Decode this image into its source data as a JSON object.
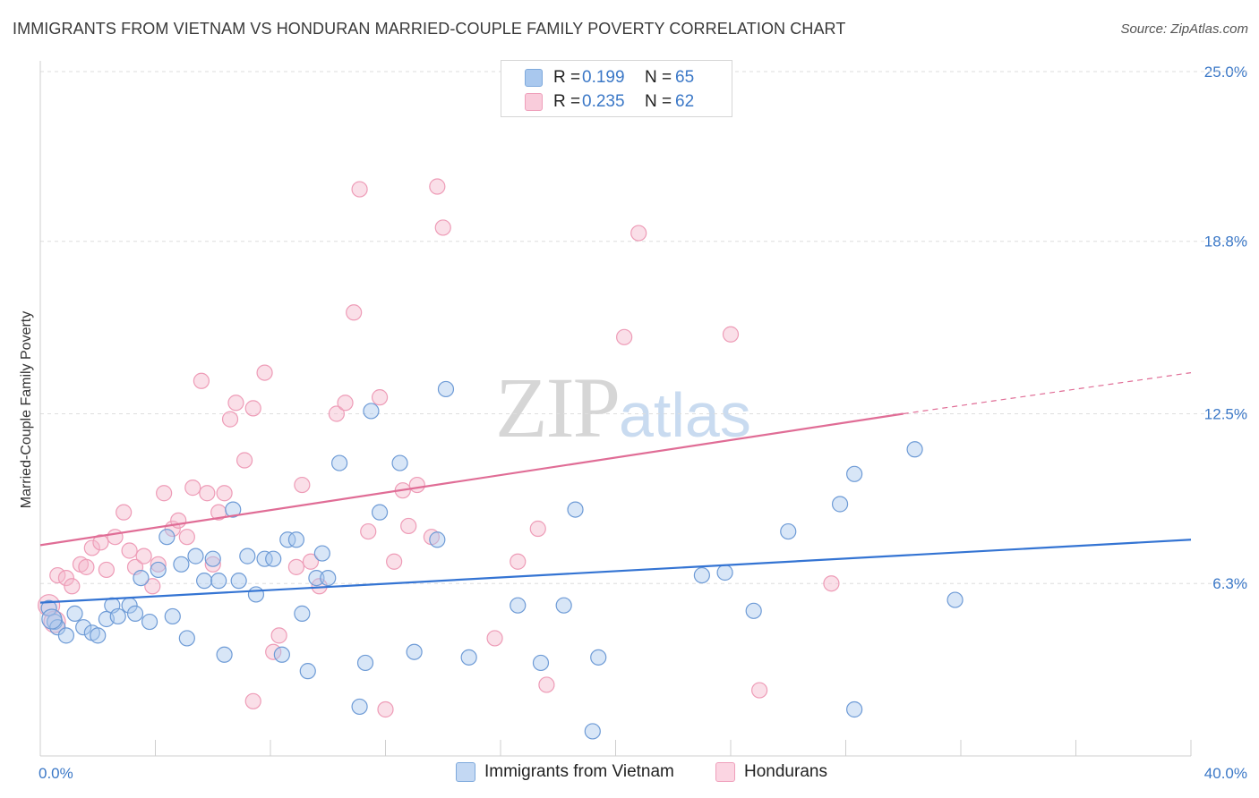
{
  "title": "IMMIGRANTS FROM VIETNAM VS HONDURAN MARRIED-COUPLE FAMILY POVERTY CORRELATION CHART",
  "source": "Source: ZipAtlas.com",
  "watermark": {
    "zip": "ZIP",
    "atlas": "atlas"
  },
  "legend": {
    "vietnam": {
      "r_label": "R =",
      "r_value": "0.199",
      "n_label": "N =",
      "n_value": "65"
    },
    "honduran": {
      "r_label": "R =",
      "r_value": "0.235",
      "n_label": "N =",
      "n_value": "62"
    }
  },
  "chart_data": {
    "type": "scatter",
    "title": "IMMIGRANTS FROM VIETNAM VS HONDURAN MARRIED-COUPLE FAMILY POVERTY CORRELATION CHART",
    "xlabel": "",
    "ylabel": "Married-Couple Family Poverty",
    "xlim": [
      0,
      40
    ],
    "ylim": [
      0,
      25
    ],
    "x_tick_labels": [
      "0.0%",
      "40.0%"
    ],
    "y_ticks": [
      6.3,
      12.5,
      18.8,
      25.0
    ],
    "y_tick_labels": [
      "6.3%",
      "12.5%",
      "18.8%",
      "25.0%"
    ],
    "grid": true,
    "colors": {
      "vietnam": "#a9c8ee",
      "vietnam_line": "#3474d3",
      "honduran": "#f5b8cb",
      "honduran_line": "#e06d96"
    },
    "series": [
      {
        "name": "Immigrants from Vietnam",
        "r": 0.199,
        "n": 65,
        "trend": {
          "x0": 0,
          "y0": 5.6,
          "x1": 40,
          "y1": 7.9
        },
        "points": [
          [
            0.3,
            5.4
          ],
          [
            0.5,
            4.9
          ],
          [
            0.6,
            4.7
          ],
          [
            0.9,
            4.4
          ],
          [
            1.2,
            5.2
          ],
          [
            1.5,
            4.7
          ],
          [
            1.8,
            4.5
          ],
          [
            2.0,
            4.4
          ],
          [
            2.3,
            5.0
          ],
          [
            2.5,
            5.5
          ],
          [
            2.7,
            5.1
          ],
          [
            3.1,
            5.5
          ],
          [
            3.3,
            5.2
          ],
          [
            3.5,
            6.5
          ],
          [
            3.8,
            4.9
          ],
          [
            4.1,
            6.8
          ],
          [
            4.4,
            8.0
          ],
          [
            4.6,
            5.1
          ],
          [
            4.9,
            7.0
          ],
          [
            5.1,
            4.3
          ],
          [
            5.4,
            7.3
          ],
          [
            5.7,
            6.4
          ],
          [
            6.0,
            7.2
          ],
          [
            6.2,
            6.4
          ],
          [
            6.4,
            3.7
          ],
          [
            6.7,
            9.0
          ],
          [
            6.9,
            6.4
          ],
          [
            7.2,
            7.3
          ],
          [
            7.5,
            5.9
          ],
          [
            7.8,
            7.2
          ],
          [
            8.1,
            7.2
          ],
          [
            8.4,
            3.7
          ],
          [
            8.6,
            7.9
          ],
          [
            8.9,
            7.9
          ],
          [
            9.1,
            5.2
          ],
          [
            9.3,
            3.1
          ],
          [
            9.6,
            6.5
          ],
          [
            9.8,
            7.4
          ],
          [
            10.0,
            6.5
          ],
          [
            10.4,
            10.7
          ],
          [
            11.1,
            1.8
          ],
          [
            11.3,
            3.4
          ],
          [
            11.5,
            12.6
          ],
          [
            11.8,
            8.9
          ],
          [
            12.5,
            10.7
          ],
          [
            13.0,
            3.8
          ],
          [
            13.8,
            7.9
          ],
          [
            14.1,
            13.4
          ],
          [
            14.9,
            3.6
          ],
          [
            16.6,
            5.5
          ],
          [
            17.4,
            3.4
          ],
          [
            18.2,
            5.5
          ],
          [
            18.6,
            9.0
          ],
          [
            19.2,
            0.9
          ],
          [
            19.4,
            3.6
          ],
          [
            23.0,
            6.6
          ],
          [
            23.8,
            6.7
          ],
          [
            24.8,
            5.3
          ],
          [
            26.0,
            8.2
          ],
          [
            27.8,
            9.2
          ],
          [
            28.3,
            10.3
          ],
          [
            28.3,
            1.7
          ],
          [
            30.4,
            11.2
          ],
          [
            31.8,
            5.7
          ],
          [
            0.4,
            5.0
          ]
        ]
      },
      {
        "name": "Hondurans",
        "r": 0.235,
        "n": 62,
        "trend": {
          "x0": 0,
          "y0": 7.7,
          "x1": 30.0,
          "y1": 12.5,
          "dash_x1": 40,
          "dash_y1": 14.0
        },
        "points": [
          [
            0.3,
            5.5
          ],
          [
            0.6,
            6.6
          ],
          [
            0.9,
            6.5
          ],
          [
            1.1,
            6.2
          ],
          [
            1.4,
            7.0
          ],
          [
            1.6,
            6.9
          ],
          [
            1.8,
            7.6
          ],
          [
            2.1,
            7.8
          ],
          [
            2.3,
            6.8
          ],
          [
            2.6,
            8.0
          ],
          [
            2.9,
            8.9
          ],
          [
            3.1,
            7.5
          ],
          [
            3.3,
            6.9
          ],
          [
            3.6,
            7.3
          ],
          [
            3.9,
            6.2
          ],
          [
            4.1,
            7.0
          ],
          [
            4.3,
            9.6
          ],
          [
            4.6,
            8.3
          ],
          [
            4.8,
            8.6
          ],
          [
            5.1,
            8.0
          ],
          [
            5.3,
            9.8
          ],
          [
            5.6,
            13.7
          ],
          [
            5.8,
            9.6
          ],
          [
            6.0,
            7.0
          ],
          [
            6.2,
            8.9
          ],
          [
            6.4,
            9.6
          ],
          [
            6.6,
            12.3
          ],
          [
            6.8,
            12.9
          ],
          [
            7.1,
            10.8
          ],
          [
            7.4,
            12.7
          ],
          [
            7.8,
            14.0
          ],
          [
            8.1,
            3.8
          ],
          [
            8.3,
            4.4
          ],
          [
            8.9,
            6.9
          ],
          [
            9.1,
            9.9
          ],
          [
            9.4,
            7.1
          ],
          [
            9.7,
            6.2
          ],
          [
            10.3,
            12.5
          ],
          [
            10.6,
            12.9
          ],
          [
            10.9,
            16.2
          ],
          [
            11.1,
            20.7
          ],
          [
            11.4,
            8.2
          ],
          [
            11.8,
            13.1
          ],
          [
            12.0,
            1.7
          ],
          [
            12.3,
            7.1
          ],
          [
            12.6,
            9.7
          ],
          [
            12.8,
            8.4
          ],
          [
            13.1,
            9.9
          ],
          [
            13.6,
            8.0
          ],
          [
            13.8,
            20.8
          ],
          [
            14.0,
            19.3
          ],
          [
            15.8,
            4.3
          ],
          [
            16.6,
            7.1
          ],
          [
            17.3,
            8.3
          ],
          [
            17.6,
            2.6
          ],
          [
            20.3,
            15.3
          ],
          [
            20.8,
            19.1
          ],
          [
            24.0,
            15.4
          ],
          [
            25.0,
            2.4
          ],
          [
            27.5,
            6.3
          ],
          [
            0.5,
            4.9
          ],
          [
            7.4,
            2.0
          ]
        ]
      }
    ]
  },
  "bottom_legend": [
    "Immigrants from Vietnam",
    "Hondurans"
  ]
}
